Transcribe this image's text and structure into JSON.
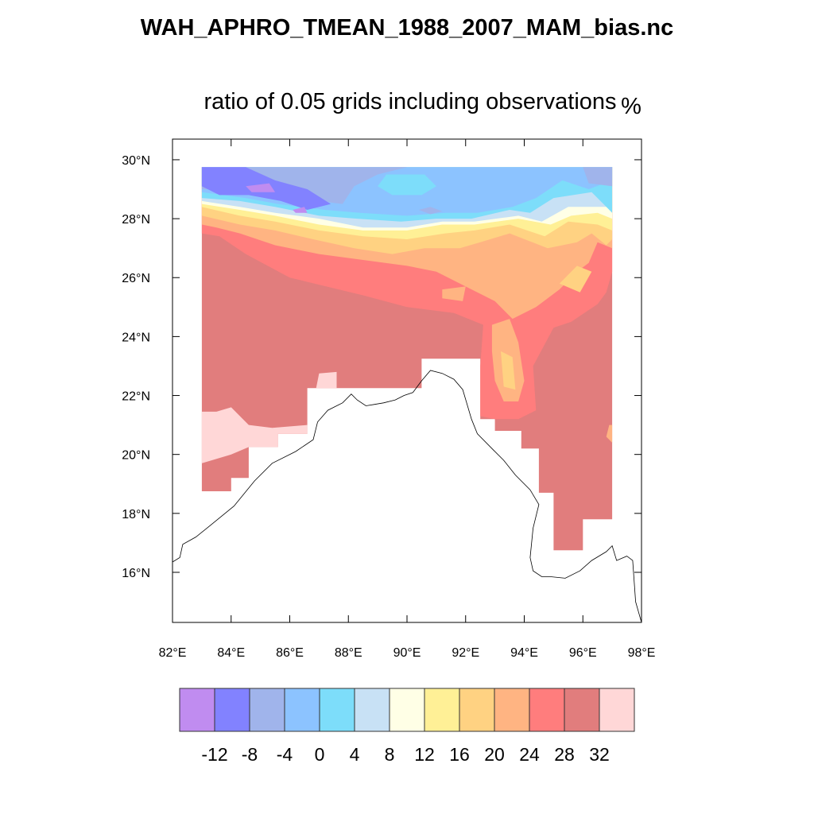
{
  "title": "WAH_APHRO_TMEAN_1988_2007_MAM_bias.nc",
  "subtitle": "ratio of 0.05 grids including observations",
  "units": "%",
  "map": {
    "lon_range": [
      82,
      98
    ],
    "lat_range": [
      14.3,
      30.7
    ],
    "x_ticks": [
      {
        "value": 82,
        "label": "82°E"
      },
      {
        "value": 84,
        "label": "84°E"
      },
      {
        "value": 86,
        "label": "86°E"
      },
      {
        "value": 88,
        "label": "88°E"
      },
      {
        "value": 90,
        "label": "90°E"
      },
      {
        "value": 92,
        "label": "92°E"
      },
      {
        "value": 94,
        "label": "94°E"
      },
      {
        "value": 96,
        "label": "96°E"
      },
      {
        "value": 98,
        "label": "98°E"
      }
    ],
    "y_ticks": [
      {
        "value": 16,
        "label": "16°N"
      },
      {
        "value": 18,
        "label": "18°N"
      },
      {
        "value": 20,
        "label": "20°N"
      },
      {
        "value": 22,
        "label": "22°N"
      },
      {
        "value": 24,
        "label": "24°N"
      },
      {
        "value": 26,
        "label": "26°N"
      },
      {
        "value": 28,
        "label": "28°N"
      },
      {
        "value": 30,
        "label": "30°N"
      }
    ],
    "coastline": [
      [
        82.0,
        16.35
      ],
      [
        82.25,
        16.5
      ],
      [
        82.35,
        16.95
      ],
      [
        82.8,
        17.2
      ],
      [
        83.3,
        17.6
      ],
      [
        84.1,
        18.25
      ],
      [
        84.8,
        19.1
      ],
      [
        85.4,
        19.7
      ],
      [
        86.2,
        20.1
      ],
      [
        86.8,
        20.5
      ],
      [
        86.95,
        21.1
      ],
      [
        87.3,
        21.5
      ],
      [
        87.8,
        21.75
      ],
      [
        88.1,
        22.05
      ],
      [
        88.3,
        21.85
      ],
      [
        88.6,
        21.65
      ],
      [
        88.9,
        21.7
      ],
      [
        89.2,
        21.75
      ],
      [
        89.6,
        21.85
      ],
      [
        89.9,
        22.0
      ],
      [
        90.2,
        22.1
      ],
      [
        90.5,
        22.5
      ],
      [
        90.8,
        22.85
      ],
      [
        91.2,
        22.75
      ],
      [
        91.6,
        22.55
      ],
      [
        91.9,
        22.2
      ],
      [
        92.2,
        21.2
      ],
      [
        92.4,
        20.7
      ],
      [
        92.9,
        20.2
      ],
      [
        93.3,
        19.8
      ],
      [
        93.7,
        19.3
      ],
      [
        94.2,
        18.8
      ],
      [
        94.5,
        18.3
      ],
      [
        94.3,
        17.5
      ],
      [
        94.2,
        16.5
      ],
      [
        94.3,
        16.05
      ],
      [
        94.6,
        15.85
      ],
      [
        94.9,
        15.85
      ],
      [
        95.4,
        15.8
      ],
      [
        95.9,
        16.05
      ],
      [
        96.3,
        16.4
      ],
      [
        96.8,
        16.7
      ],
      [
        97.0,
        16.9
      ],
      [
        97.15,
        16.4
      ],
      [
        97.5,
        16.55
      ],
      [
        97.7,
        16.4
      ],
      [
        97.8,
        15.0
      ],
      [
        98.0,
        14.3
      ]
    ]
  },
  "colorbar": {
    "colors": [
      "#c08cf0",
      "#8282ff",
      "#a0b4eb",
      "#8cc3ff",
      "#7dddfa",
      "#c8e1f5",
      "#ffffe6",
      "#fff096",
      "#ffd282",
      "#ffb482",
      "#ff7d7d",
      "#e17d7d",
      "#ffd7d7"
    ],
    "labels": [
      "-12",
      "-8",
      "-4",
      "0",
      "4",
      "8",
      "12",
      "16",
      "20",
      "24",
      "28",
      "32"
    ]
  }
}
